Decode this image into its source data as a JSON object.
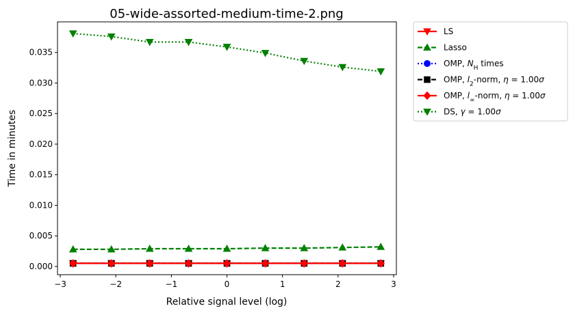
{
  "chart_data": {
    "type": "line",
    "title": "05-wide-assorted-medium-time-2.png",
    "xlabel": "Relative signal level (log)",
    "ylabel": "Time in minutes",
    "xlim": [
      -3.05,
      3.05
    ],
    "ylim": [
      -0.00135,
      0.04
    ],
    "xticks": [
      -3,
      -2,
      -1,
      0,
      1,
      2,
      3
    ],
    "xtick_labels": [
      "−3",
      "−2",
      "−1",
      "0",
      "1",
      "2",
      "3"
    ],
    "yticks": [
      0.0,
      0.005,
      0.01,
      0.015,
      0.02,
      0.025,
      0.03,
      0.035
    ],
    "ytick_labels": [
      "0.000",
      "0.005",
      "0.010",
      "0.015",
      "0.020",
      "0.025",
      "0.030",
      "0.035"
    ],
    "grid": false,
    "legend_position": "outside-right-top",
    "x": [
      -2.77,
      -2.08,
      -1.39,
      -0.69,
      0.0,
      0.69,
      1.39,
      2.08,
      2.77
    ],
    "series": [
      {
        "name": "LS",
        "color": "#ff0000",
        "dash": "solid",
        "marker": "triangle-down",
        "values": [
          0.0005,
          0.0005,
          0.0005,
          0.0005,
          0.0005,
          0.0005,
          0.0005,
          0.0005,
          0.0005
        ]
      },
      {
        "name": "Lasso",
        "color": "#008000",
        "dash": "dashed",
        "marker": "triangle-up",
        "values": [
          0.0028,
          0.0028,
          0.0029,
          0.0029,
          0.0029,
          0.003,
          0.003,
          0.0031,
          0.0032
        ]
      },
      {
        "name": "OMP, N_H times",
        "color": "#0000ff",
        "dash": "dotted",
        "marker": "circle",
        "values": [
          0.0005,
          0.0005,
          0.0005,
          0.0005,
          0.0005,
          0.0005,
          0.0005,
          0.0005,
          0.0005
        ]
      },
      {
        "name": "OMP, l_2-norm, η = 1.00σ",
        "color": "#000000",
        "dash": "dashed",
        "marker": "square",
        "values": [
          0.0005,
          0.0005,
          0.0005,
          0.0005,
          0.0005,
          0.0005,
          0.0005,
          0.0005,
          0.0005
        ]
      },
      {
        "name": "OMP, l_∞-norm, η = 1.00σ",
        "color": "#ff0000",
        "dash": "solid",
        "marker": "diamond",
        "values": [
          0.0005,
          0.0005,
          0.0005,
          0.0005,
          0.0005,
          0.0005,
          0.0005,
          0.0005,
          0.0005
        ]
      },
      {
        "name": "DS, γ = 1.00σ",
        "color": "#008000",
        "dash": "dotted",
        "marker": "triangle-down",
        "values": [
          0.0381,
          0.0376,
          0.0367,
          0.0367,
          0.0359,
          0.0349,
          0.0336,
          0.0326,
          0.0319
        ]
      }
    ],
    "legend": [
      {
        "label": "LS"
      },
      {
        "label": "Lasso"
      },
      {
        "pre": "OMP, ",
        "var": "N",
        "sub": "H",
        "post": " times"
      },
      {
        "pre": "OMP, ",
        "var": "l",
        "sub": "2",
        "post": "-norm, ",
        "var2": "η",
        "post2": " = 1.00",
        "var3": "σ"
      },
      {
        "pre": "OMP, ",
        "var": "l",
        "sub": "∞",
        "post": "-norm, ",
        "var2": "η",
        "post2": " = 1.00",
        "var3": "σ"
      },
      {
        "pre": "DS, ",
        "var": "γ",
        "post": " = 1.00",
        "var3": "σ"
      }
    ]
  }
}
